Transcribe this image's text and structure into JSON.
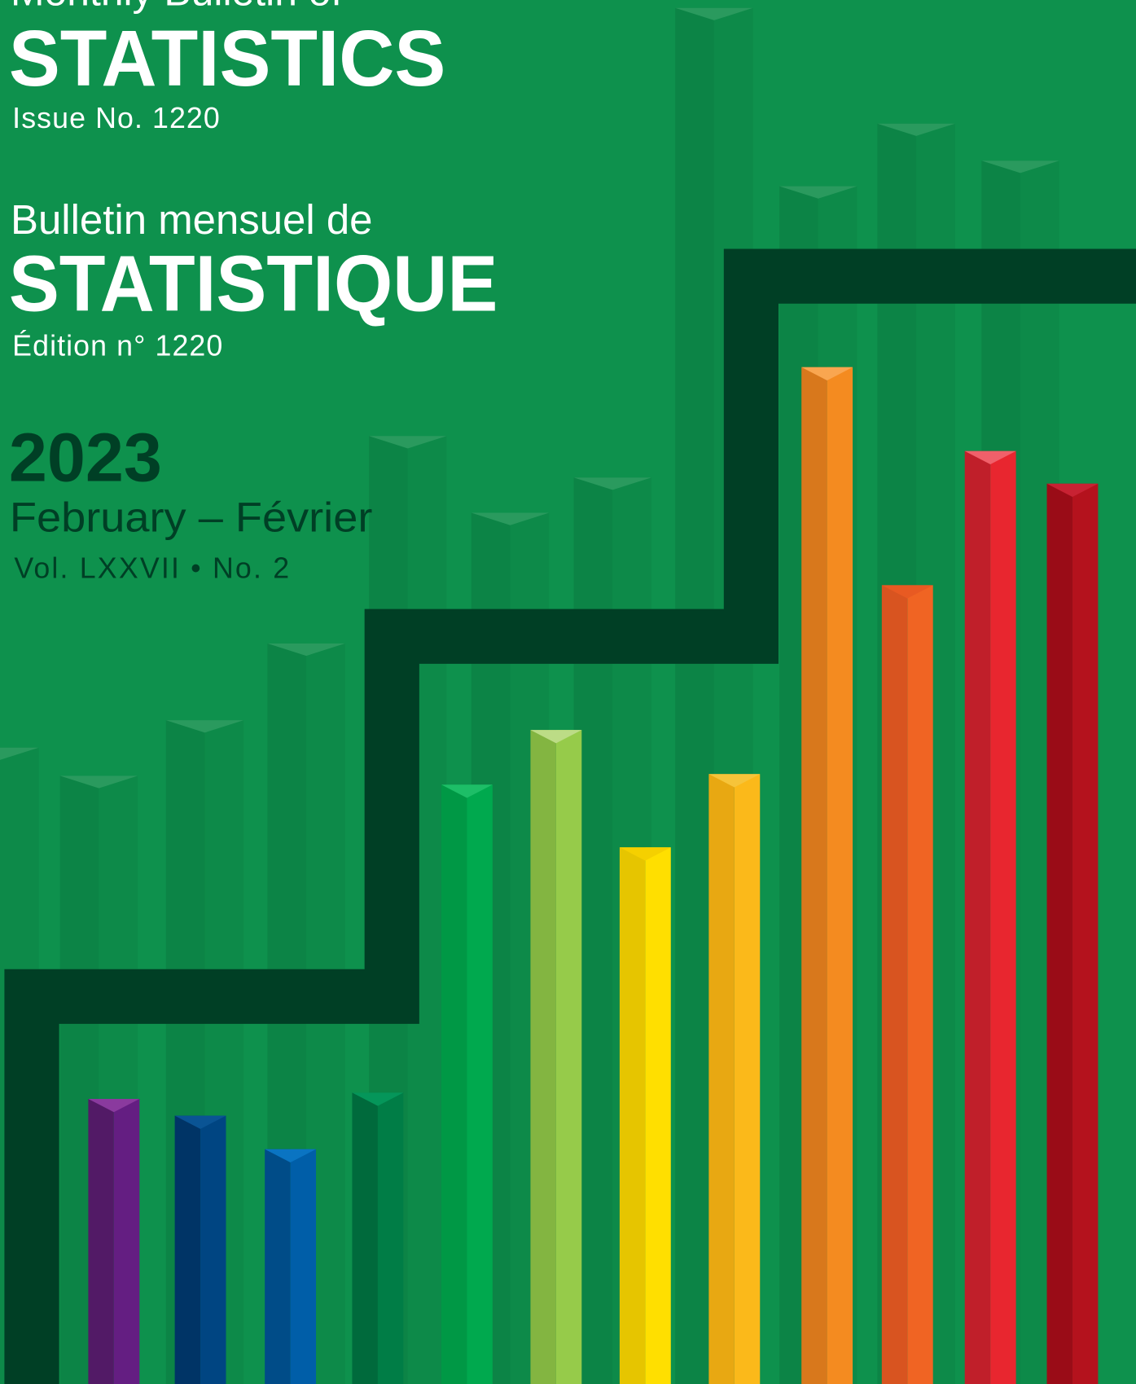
{
  "cover": {
    "series_title_en": "Monthly Bulletin of",
    "title_en": "STATISTICS",
    "issue_en": "Issue No. 1220",
    "series_title_fr": "Bulletin mensuel de",
    "title_fr": "STATISTIQUE",
    "issue_fr": "Édition n° 1220",
    "year": "2023",
    "month": "February – Février",
    "volume": "Vol. LXXVII • No. 2"
  }
}
